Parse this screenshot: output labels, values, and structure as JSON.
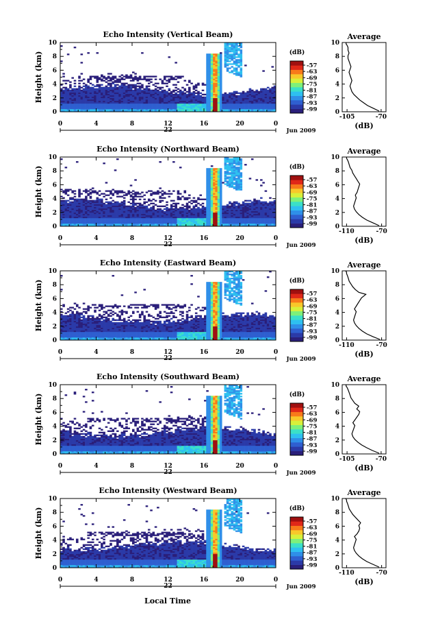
{
  "figure": {
    "xlabel": "Local Time",
    "colors": {
      "colormap": [
        "#2a1f7a",
        "#2b3aa8",
        "#2f5fd0",
        "#2f8fe8",
        "#2ec0f0",
        "#3be0c8",
        "#7ef07a",
        "#d8f03a",
        "#f8c82a",
        "#f87a1a",
        "#e02818",
        "#a01010"
      ]
    }
  },
  "chart_data": [
    {
      "type": "heatmap",
      "title": "Echo Intensity (Vertical Beam)",
      "ylabel": "Height (km)",
      "xlabel": "Local Time",
      "x_ticks": [
        "0",
        "4",
        "8",
        "12",
        "16",
        "20",
        "0"
      ],
      "x_range": [
        0,
        24
      ],
      "y_ticks": [
        "0",
        "2",
        "4",
        "6",
        "8",
        "10"
      ],
      "y_range": [
        0,
        10
      ],
      "date_label": "22",
      "date_suffix": "Jun 2009",
      "colorbar": {
        "unit": "(dB)",
        "ticks": [
          "-57",
          "-63",
          "-69",
          "-75",
          "-81",
          "-87",
          "-93",
          "-99"
        ]
      },
      "profile": {
        "title": "Average",
        "xlabel": "(dB)",
        "x_ticks": [
          "-105",
          "-70"
        ],
        "x_range": [
          -110,
          -65
        ],
        "y_ticks": [
          "0",
          "2",
          "4",
          "6",
          "8",
          "10"
        ],
        "x": [
          -72,
          -78,
          -84,
          -88,
          -92,
          -95,
          -98,
          -100,
          -101,
          -102,
          -101,
          -100,
          -101,
          -102,
          -103,
          -102,
          -101,
          -102,
          -103,
          -104,
          -104,
          -103,
          -104,
          -104,
          -105,
          -106,
          -106
        ],
        "y": [
          0.1,
          0.5,
          0.9,
          1.3,
          1.7,
          2.1,
          2.5,
          2.9,
          3.3,
          3.7,
          4.1,
          4.5,
          4.9,
          5.3,
          5.7,
          6.1,
          6.5,
          6.9,
          7.3,
          7.7,
          8.1,
          8.5,
          8.9,
          9.3,
          9.6,
          9.8,
          10.0
        ]
      }
    },
    {
      "type": "heatmap",
      "title": "Echo Intensity (Northward Beam)",
      "ylabel": "Height (km)",
      "xlabel": "Local Time",
      "x_ticks": [
        "0",
        "4",
        "8",
        "12",
        "16",
        "20",
        "0"
      ],
      "x_range": [
        0,
        24
      ],
      "y_ticks": [
        "0",
        "2",
        "4",
        "6",
        "8",
        "10"
      ],
      "y_range": [
        0,
        10
      ],
      "date_label": "22",
      "date_suffix": "Jun 2009",
      "colorbar": {
        "unit": "(dB)",
        "ticks": [
          "-57",
          "-63",
          "-69",
          "-75",
          "-81",
          "-87",
          "-93",
          "-99"
        ]
      },
      "profile": {
        "title": "Average",
        "xlabel": "(dB)",
        "x_ticks": [
          "-110",
          "-70"
        ],
        "x_range": [
          -115,
          -65
        ],
        "y_ticks": [
          "0",
          "2",
          "4",
          "6",
          "8",
          "10"
        ],
        "x": [
          -73,
          -80,
          -87,
          -92,
          -96,
          -99,
          -101,
          -102,
          -101,
          -100,
          -99,
          -100,
          -98,
          -97,
          -96,
          -95,
          -97,
          -99,
          -101,
          -103,
          -104,
          -106,
          -107,
          -108,
          -109,
          -110,
          -110
        ],
        "y": [
          0.1,
          0.5,
          0.9,
          1.3,
          1.7,
          2.1,
          2.5,
          2.9,
          3.3,
          3.7,
          4.1,
          4.5,
          4.9,
          5.3,
          5.7,
          6.1,
          6.5,
          6.9,
          7.3,
          7.7,
          8.1,
          8.5,
          8.9,
          9.3,
          9.6,
          9.8,
          10.0
        ]
      }
    },
    {
      "type": "heatmap",
      "title": "Echo Intensity (Eastward Beam)",
      "ylabel": "Height (km)",
      "xlabel": "Local Time",
      "x_ticks": [
        "0",
        "4",
        "8",
        "12",
        "16",
        "20",
        "0"
      ],
      "x_range": [
        0,
        24
      ],
      "y_ticks": [
        "0",
        "2",
        "4",
        "6",
        "8",
        "10"
      ],
      "y_range": [
        0,
        10
      ],
      "date_label": "22",
      "date_suffix": "Jun 2009",
      "colorbar": {
        "unit": "(dB)",
        "ticks": [
          "-57",
          "-63",
          "-69",
          "-75",
          "-81",
          "-87",
          "-93",
          "-99"
        ]
      },
      "profile": {
        "title": "Average",
        "xlabel": "(dB)",
        "x_ticks": [
          "-110",
          "-70"
        ],
        "x_range": [
          -115,
          -65
        ],
        "y_ticks": [
          "0",
          "2",
          "4",
          "6",
          "8",
          "10"
        ],
        "x": [
          -72,
          -80,
          -87,
          -92,
          -96,
          -99,
          -101,
          -102,
          -101,
          -100,
          -99,
          -101,
          -99,
          -97,
          -95,
          -93,
          -88,
          -96,
          -100,
          -103,
          -105,
          -107,
          -108,
          -109,
          -110,
          -110,
          -111
        ],
        "y": [
          0.1,
          0.5,
          0.9,
          1.3,
          1.7,
          2.1,
          2.5,
          2.9,
          3.3,
          3.7,
          4.1,
          4.5,
          4.9,
          5.3,
          5.7,
          6.1,
          6.6,
          6.9,
          7.3,
          7.7,
          8.1,
          8.5,
          8.9,
          9.3,
          9.6,
          9.8,
          10.0
        ]
      }
    },
    {
      "type": "heatmap",
      "title": "Echo Intensity (Southward Beam)",
      "ylabel": "Height (km)",
      "xlabel": "Local Time",
      "x_ticks": [
        "0",
        "4",
        "8",
        "12",
        "16",
        "20",
        "0"
      ],
      "x_range": [
        0,
        24
      ],
      "y_ticks": [
        "0",
        "2",
        "4",
        "6",
        "8",
        "10"
      ],
      "y_range": [
        0,
        10
      ],
      "date_label": "22",
      "date_suffix": "Jun 2009",
      "colorbar": {
        "unit": "(dB)",
        "ticks": [
          "-57",
          "-63",
          "-69",
          "-75",
          "-81",
          "-87",
          "-93",
          "-99"
        ]
      },
      "profile": {
        "title": "Average",
        "xlabel": "(dB)",
        "x_ticks": [
          "-105",
          "-70"
        ],
        "x_range": [
          -110,
          -65
        ],
        "y_ticks": [
          "0",
          "2",
          "4",
          "6",
          "8",
          "10"
        ],
        "x": [
          -72,
          -79,
          -85,
          -90,
          -94,
          -97,
          -99,
          -100,
          -99,
          -98,
          -97,
          -99,
          -97,
          -95,
          -93,
          -92,
          -95,
          -93,
          -97,
          -99,
          -101,
          -102,
          -103,
          -104,
          -105,
          -106,
          -106
        ],
        "y": [
          0.1,
          0.5,
          0.9,
          1.3,
          1.7,
          2.1,
          2.5,
          2.9,
          3.3,
          3.7,
          4.1,
          4.5,
          4.9,
          5.3,
          5.7,
          6.1,
          6.5,
          6.9,
          7.3,
          7.7,
          8.1,
          8.5,
          8.9,
          9.3,
          9.6,
          9.8,
          10.0
        ]
      }
    },
    {
      "type": "heatmap",
      "title": "Echo Intensity (Westward Beam)",
      "ylabel": "Height (km)",
      "xlabel": "Local Time",
      "x_ticks": [
        "0",
        "4",
        "8",
        "12",
        "16",
        "20",
        "0"
      ],
      "x_range": [
        0,
        24
      ],
      "y_ticks": [
        "0",
        "2",
        "4",
        "6",
        "8",
        "10"
      ],
      "y_range": [
        0,
        10
      ],
      "date_label": "22",
      "date_suffix": "Jun 2009",
      "colorbar": {
        "unit": "(dB)",
        "ticks": [
          "-57",
          "-63",
          "-69",
          "-75",
          "-81",
          "-87",
          "-93",
          "-99"
        ]
      },
      "profile": {
        "title": "Average",
        "xlabel": "(dB)",
        "x_ticks": [
          "-110",
          "-70"
        ],
        "x_range": [
          -115,
          -65
        ],
        "y_ticks": [
          "0",
          "2",
          "4",
          "6",
          "8",
          "10"
        ],
        "x": [
          -73,
          -80,
          -87,
          -92,
          -96,
          -99,
          -101,
          -102,
          -101,
          -100,
          -99,
          -101,
          -98,
          -96,
          -95,
          -96,
          -94,
          -97,
          -100,
          -103,
          -105,
          -107,
          -108,
          -109,
          -110,
          -110,
          -111
        ],
        "y": [
          0.1,
          0.5,
          0.9,
          1.3,
          1.7,
          2.1,
          2.5,
          2.9,
          3.3,
          3.7,
          4.1,
          4.5,
          4.9,
          5.3,
          5.7,
          6.1,
          6.5,
          6.9,
          7.3,
          7.7,
          8.1,
          8.5,
          8.9,
          9.3,
          9.6,
          9.8,
          10.0
        ]
      }
    }
  ]
}
